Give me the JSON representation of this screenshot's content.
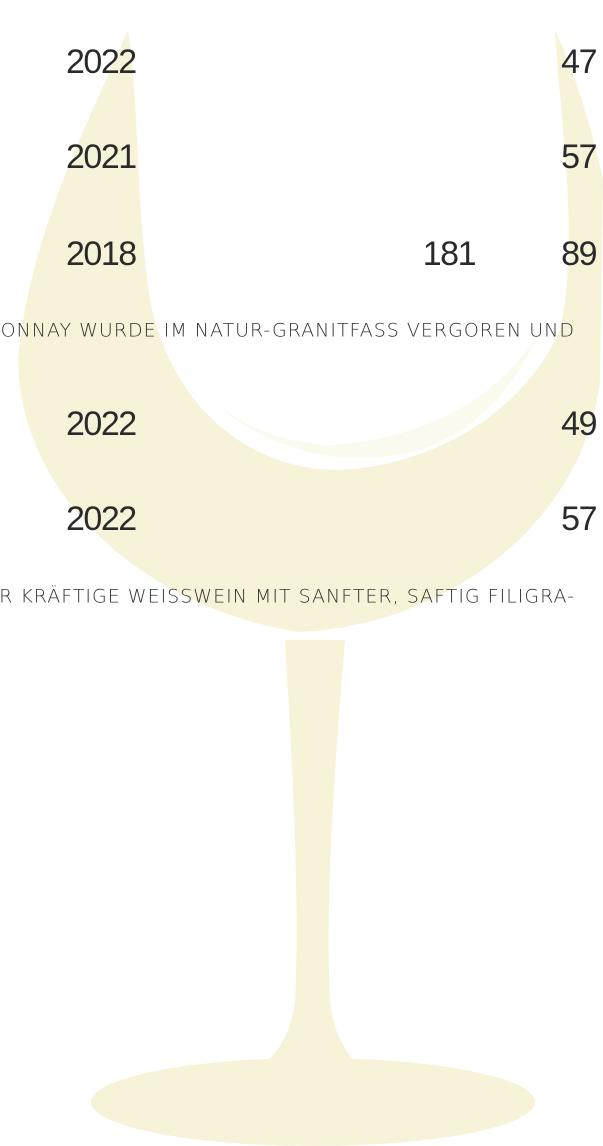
{
  "items": [
    {
      "year": "2022",
      "price": "47"
    },
    {
      "year": "2021",
      "price": "57"
    },
    {
      "year": "2018",
      "volume": "181",
      "price": "89"
    },
    {
      "description": "DONNAY WURDE IM NATUR-GRANITFASS VERGOREN UND"
    },
    {
      "year": "2022",
      "price": "49"
    },
    {
      "year": "2022",
      "price": "57"
    },
    {
      "description": "DER KRÄFTIGE WEISSWEIN MIT SANFTER, SAFTIG FILIGRA-"
    }
  ]
}
